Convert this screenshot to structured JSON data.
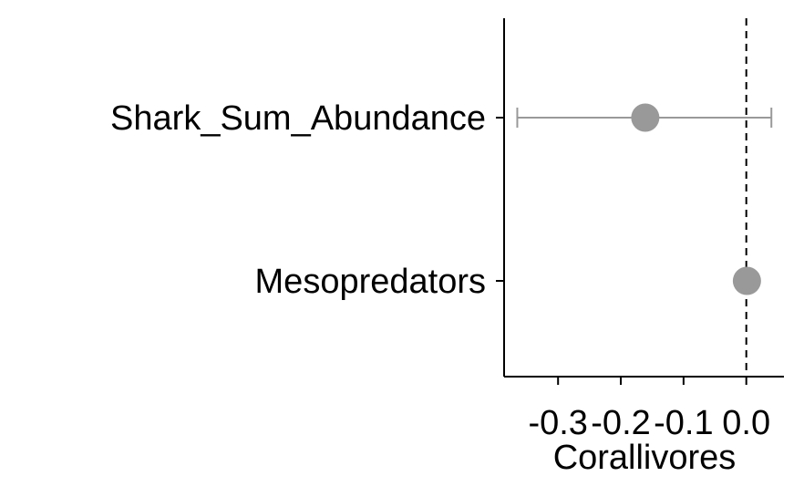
{
  "chart_data": {
    "type": "scatter",
    "title": "",
    "xlabel": "Corallivores",
    "ylabel": "",
    "categories": [
      "Shark_Sum_Abundance",
      "Mesopredators"
    ],
    "x_ticks": [
      -0.3,
      -0.2,
      -0.1,
      0.0
    ],
    "x_tick_labels": [
      "-0.3",
      "-0.2",
      "-0.1",
      "0.0"
    ],
    "xlim": [
      -0.386,
      0.06
    ],
    "reference_line_x": 0.0,
    "points": [
      {
        "category": "Shark_Sum_Abundance",
        "estimate": -0.161,
        "lower": -0.365,
        "upper": 0.04
      },
      {
        "category": "Mesopredators",
        "estimate": 0.001,
        "lower": -0.004,
        "upper": 0.006
      }
    ],
    "colors": {
      "point": "#999999",
      "errorbar": "#999999",
      "axis": "#000000",
      "reference_line": "#000000"
    },
    "grid": false,
    "legend": "none"
  }
}
